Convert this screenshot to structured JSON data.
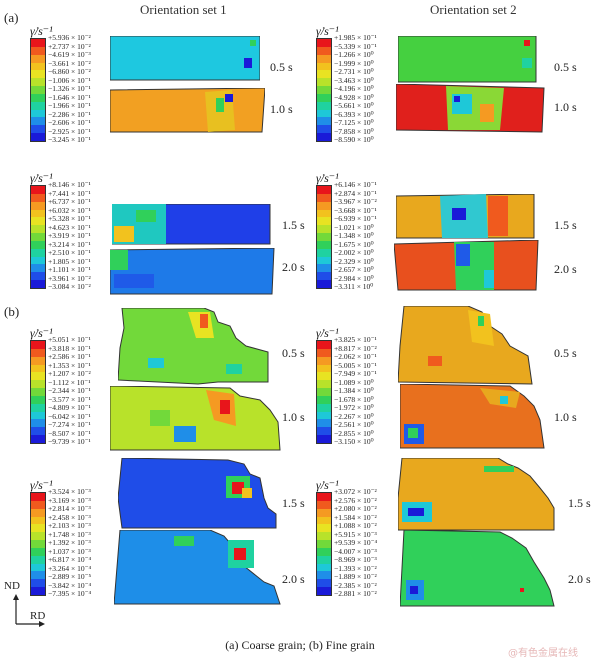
{
  "figure": {
    "col_titles": [
      "Orientation set 1",
      "Orientation set 2"
    ],
    "part_labels": [
      "(a)",
      "(b)"
    ],
    "times": [
      "0.5 s",
      "1.0 s",
      "1.5 s",
      "2.0 s"
    ],
    "unit": "γ̇/s⁻¹",
    "axis": {
      "nd": "ND",
      "rd": "RD"
    },
    "caption": "(a) Coarse grain; (b) Fine grain",
    "watermark": "@有色金属在线"
  },
  "legends": {
    "a_left_top": [
      "+5.936 × 10⁻²",
      "+2.737 × 10⁻²",
      "−4.619 × 10⁻³",
      "−3.661 × 10⁻²",
      "−6.860 × 10⁻²",
      "−1.006 × 10⁻¹",
      "−1.326 × 10⁻¹",
      "−1.646 × 10⁻¹",
      "−1.966 × 10⁻¹",
      "−2.286 × 10⁻¹",
      "−2.606 × 10⁻¹",
      "−2.925 × 10⁻¹",
      "−3.245 × 10⁻¹"
    ],
    "a_right_top": [
      "+1.985 × 10⁻¹",
      "−5.339 × 10⁻¹",
      "−1.266 × 10⁰",
      "−1.999 × 10⁰",
      "−2.731 × 10⁰",
      "−3.463 × 10⁰",
      "−4.196 × 10⁰",
      "−4.928 × 10⁰",
      "−5.661 × 10⁰",
      "−6.393 × 10⁰",
      "−7.125 × 10⁰",
      "−7.858 × 10⁰",
      "−8.590 × 10⁰"
    ],
    "a_left_bot": [
      "+8.146 × 10⁻¹",
      "+7.441 × 10⁻¹",
      "+6.737 × 10⁻¹",
      "+6.032 × 10⁻¹",
      "+5.328 × 10⁻¹",
      "+4.623 × 10⁻¹",
      "+3.919 × 10⁻¹",
      "+3.214 × 10⁻¹",
      "+2.510 × 10⁻¹",
      "+1.805 × 10⁻¹",
      "+1.101 × 10⁻¹",
      "+3.961 × 10⁻²",
      "−3.084 × 10⁻²"
    ],
    "a_right_bot": [
      "+6.146 × 10⁻¹",
      "+2.874 × 10⁻¹",
      "−3.967 × 10⁻²",
      "−3.668 × 10⁻¹",
      "−6.939 × 10⁻¹",
      "−1.021 × 10⁰",
      "−1.348 × 10⁰",
      "−1.675 × 10⁰",
      "−2.002 × 10⁰",
      "−2.329 × 10⁰",
      "−2.657 × 10⁰",
      "−2.984 × 10⁰",
      "−3.311 × 10⁰"
    ],
    "b_left_top": [
      "+5.051 × 10⁻¹",
      "+3.818 × 10⁻¹",
      "+2.586 × 10⁻¹",
      "+1.353 × 10⁻¹",
      "+1.207 × 10⁻²",
      "−1.112 × 10⁻¹",
      "−2.344 × 10⁻¹",
      "−3.577 × 10⁻¹",
      "−4.809 × 10⁻¹",
      "−6.042 × 10⁻¹",
      "−7.274 × 10⁻¹",
      "−8.507 × 10⁻¹",
      "−9.739 × 10⁻¹"
    ],
    "b_right_top": [
      "+3.825 × 10⁻¹",
      "+8.817 × 10⁻²",
      "−2.062 × 10⁻¹",
      "−5.005 × 10⁻¹",
      "−7.949 × 10⁻¹",
      "−1.089 × 10⁰",
      "−1.384 × 10⁰",
      "−1.678 × 10⁰",
      "−1.972 × 10⁰",
      "−2.267 × 10⁰",
      "−2.561 × 10⁰",
      "−2.855 × 10⁰",
      "−3.150 × 10⁰"
    ],
    "b_left_bot": [
      "+3.524 × 10⁻³",
      "+3.169 × 10⁻³",
      "+2.814 × 10⁻³",
      "+2.458 × 10⁻³",
      "+2.103 × 10⁻³",
      "+1.748 × 10⁻³",
      "+1.392 × 10⁻³",
      "+1.037 × 10⁻³",
      "+6.817 × 10⁻⁴",
      "+3.264 × 10⁻⁴",
      "−2.889 × 10⁻⁵",
      "−3.842 × 10⁻⁴",
      "−7.395 × 10⁻⁴"
    ],
    "b_right_bot": [
      "+3.072 × 10⁻²",
      "+2.576 × 10⁻²",
      "+2.080 × 10⁻²",
      "+1.584 × 10⁻²",
      "+1.088 × 10⁻²",
      "+5.915 × 10⁻³",
      "+9.539 × 10⁻⁴",
      "−4.007 × 10⁻³",
      "−8.969 × 10⁻³",
      "−1.393 × 10⁻²",
      "−1.889 × 10⁻²",
      "−2.385 × 10⁻²",
      "−2.881 × 10⁻²"
    ]
  },
  "colorscale": [
    "#e8151b",
    "#f05a1e",
    "#f59a22",
    "#f2c21e",
    "#e8e322",
    "#b8e22a",
    "#72d93a",
    "#30d05a",
    "#1fd2a0",
    "#1ec8d8",
    "#1f8ee8",
    "#1f4de8",
    "#1a1ad8"
  ]
}
